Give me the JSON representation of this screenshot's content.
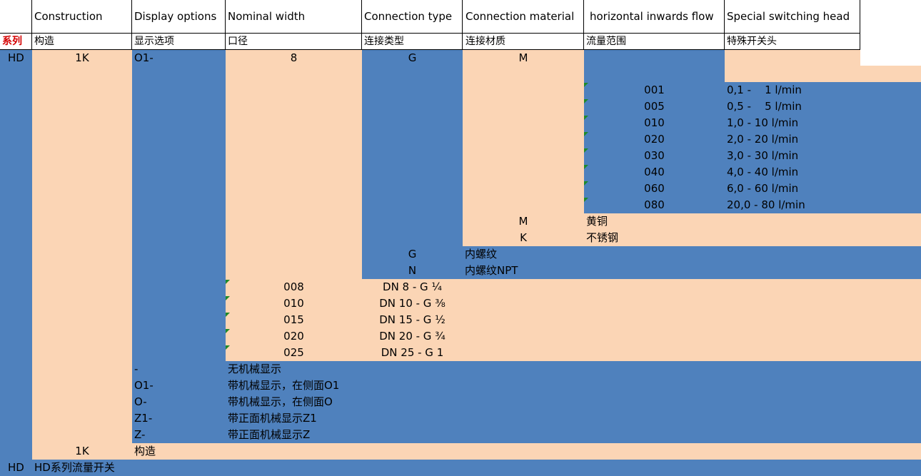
{
  "headers": [
    "Construction",
    "Display options",
    "Nominal width",
    "Connection type",
    "Connection material",
    "horizontal inwards flow",
    "Special switching head"
  ],
  "subheaders": {
    "series": "系列",
    "construction": "构造",
    "display": "显示选项",
    "nominal": "口径",
    "conn_type": "连接类型",
    "conn_material": "连接材质",
    "flow_range": "流量范围",
    "switch_head": "特殊开关头"
  },
  "model": {
    "series": "HD",
    "construction": "1K",
    "display": "O1-",
    "nominal": "8",
    "conn_type": "G",
    "conn_material": "M"
  },
  "flow_rows": [
    {
      "code": "001",
      "range": "0,1 -    1 l/min"
    },
    {
      "code": "005",
      "range": "0,5 -    5 l/min"
    },
    {
      "code": "010",
      "range": "1,0 - 10 l/min"
    },
    {
      "code": "020",
      "range": "2,0 - 20 l/min"
    },
    {
      "code": "030",
      "range": "3,0 - 30 l/min"
    },
    {
      "code": "040",
      "range": "4,0 - 40 l/min"
    },
    {
      "code": "060",
      "range": "6,0 - 60 l/min"
    },
    {
      "code": "080",
      "range": "20,0 - 80 l/min"
    }
  ],
  "material_rows": [
    {
      "code": "M",
      "desc": "黄铜"
    },
    {
      "code": "K",
      "desc": "不锈钢"
    }
  ],
  "conn_type_rows": [
    {
      "code": "G",
      "desc": "内螺纹"
    },
    {
      "code": "N",
      "desc": "内螺纹NPT"
    }
  ],
  "nominal_rows": [
    {
      "code": "008",
      "desc": "DN 8 - G ¼"
    },
    {
      "code": "010",
      "desc": "DN 10 - G ⅜"
    },
    {
      "code": "015",
      "desc": "DN 15 - G ½"
    },
    {
      "code": "020",
      "desc": "DN 20 - G ¾"
    },
    {
      "code": "025",
      "desc": "DN 25 - G 1"
    }
  ],
  "display_rows": [
    {
      "code": "-",
      "desc": "无机械显示"
    },
    {
      "code": "O1-",
      "desc": "带机械显示，在侧面O1"
    },
    {
      "code": "O-",
      "desc": "带机械显示，在侧面O"
    },
    {
      "code": "Z1-",
      "desc": "带正面机械显示Z1"
    },
    {
      "code": "Z-",
      "desc": "带正面机械显示Z"
    }
  ],
  "construction_row": {
    "code": "1K",
    "desc": "构造"
  },
  "series_row": {
    "code": "HD",
    "desc": "HD系列流量开关"
  }
}
